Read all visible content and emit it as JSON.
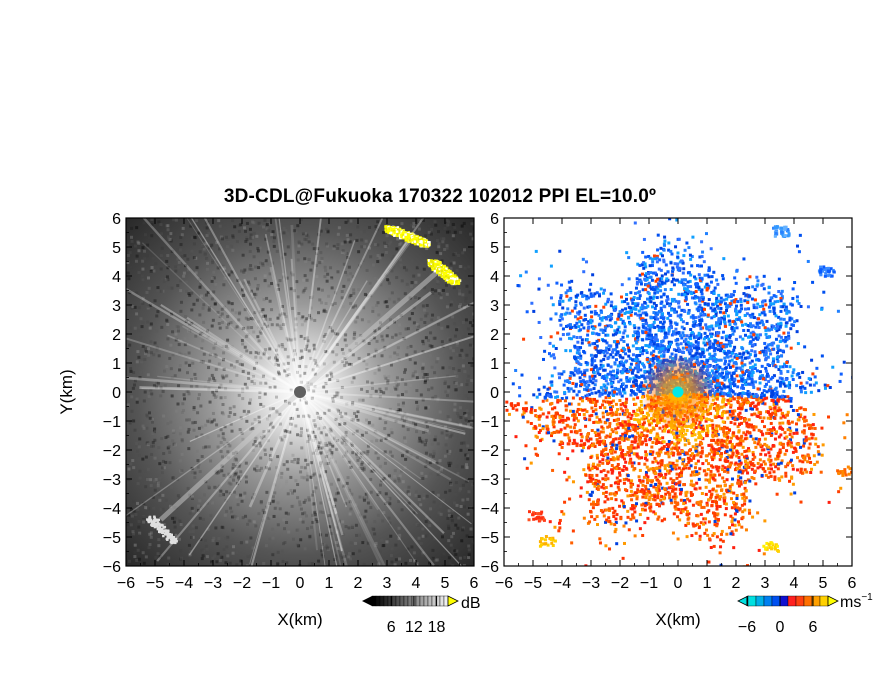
{
  "chart_data": [
    {
      "type": "heatmap",
      "panel": "reflectivity",
      "title": "3D-CDL@Fukuoka 170322 102012 PPI EL=10.0º",
      "xlabel": "X(km)",
      "ylabel": "Y(km)",
      "xlim": [
        -6,
        6
      ],
      "ylim": [
        -6,
        6
      ],
      "x_ticks": [
        -6,
        -5,
        -4,
        -3,
        -2,
        -1,
        0,
        1,
        2,
        3,
        4,
        5,
        6
      ],
      "y_ticks": [
        -6,
        -5,
        -4,
        -3,
        -2,
        -1,
        0,
        1,
        2,
        3,
        4,
        5,
        6
      ],
      "colorbar": {
        "unit": "dB",
        "ticks": [
          6,
          12,
          18
        ],
        "colors": [
          "#000000",
          "#ffffff",
          "#ffff00"
        ]
      },
      "features": [
        {
          "name": "radial beam",
          "from": [
            0,
            0
          ],
          "to": [
            4.8,
            4.2
          ]
        },
        {
          "name": "radial beam",
          "from": [
            0,
            0
          ],
          "to": [
            -4.8,
            -4.4
          ]
        },
        {
          "name": "strong echo",
          "x_range": [
            3.0,
            4.3
          ],
          "y_range": [
            5.2,
            5.8
          ]
        },
        {
          "name": "strong echo",
          "x_range": [
            4.4,
            5.4
          ],
          "y_range": [
            3.9,
            4.5
          ]
        }
      ]
    },
    {
      "type": "heatmap",
      "panel": "doppler velocity",
      "xlabel": "X(km)",
      "xlim": [
        -6,
        6
      ],
      "ylim": [
        -6,
        6
      ],
      "x_ticks": [
        -6,
        -5,
        -4,
        -3,
        -2,
        -1,
        0,
        1,
        2,
        3,
        4,
        5,
        6
      ],
      "y_ticks": [
        -6,
        -5,
        -4,
        -3,
        -2,
        -1,
        0,
        1,
        2,
        3,
        4,
        5,
        6
      ],
      "colorbar": {
        "unit": "ms",
        "unit_exp": "−1",
        "ticks": [
          -6,
          0,
          6
        ],
        "colors": [
          "#00e0e0",
          "#1010d0",
          "#ff2020",
          "#ffff00"
        ]
      },
      "center_marker": {
        "x": 0,
        "y": 0,
        "color": "#00e8e8"
      },
      "regions": [
        {
          "name": "approaching (negative)",
          "sector": "north",
          "color": "#1050ff"
        },
        {
          "name": "receding (positive)",
          "sector": "south",
          "color": "#ff7000"
        }
      ]
    }
  ],
  "labels": {
    "title": "3D-CDL@Fukuoka 170322 102012 PPI EL=10.0º",
    "ylabel": "Y(km)",
    "xlabel_left": "X(km)",
    "xlabel_right": "X(km)",
    "cb1_unit": "dB",
    "cb2_unit": "ms",
    "cb2_unit_exp": "−1"
  }
}
